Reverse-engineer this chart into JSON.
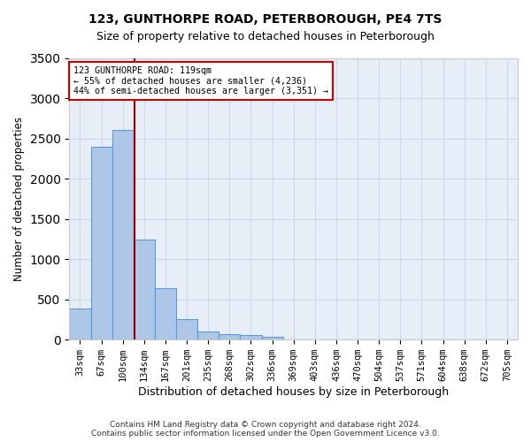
{
  "title1": "123, GUNTHORPE ROAD, PETERBOROUGH, PE4 7TS",
  "title2": "Size of property relative to detached houses in Peterborough",
  "xlabel": "Distribution of detached houses by size in Peterborough",
  "ylabel": "Number of detached properties",
  "bin_labels": [
    "33sqm",
    "67sqm",
    "100sqm",
    "134sqm",
    "167sqm",
    "201sqm",
    "235sqm",
    "268sqm",
    "302sqm",
    "336sqm",
    "369sqm",
    "403sqm",
    "436sqm",
    "470sqm",
    "504sqm",
    "537sqm",
    "571sqm",
    "604sqm",
    "638sqm",
    "672sqm",
    "705sqm"
  ],
  "bar_values": [
    390,
    2400,
    2600,
    1240,
    640,
    260,
    100,
    65,
    60,
    40,
    0,
    0,
    0,
    0,
    0,
    0,
    0,
    0,
    0,
    0,
    0
  ],
  "bar_color": "#aec6e8",
  "bar_edge_color": "#5b9bd5",
  "annotation_text_line1": "123 GUNTHORPE ROAD: 119sqm",
  "annotation_text_line2": "← 55% of detached houses are smaller (4,236)",
  "annotation_text_line3": "44% of semi-detached houses are larger (3,351) →",
  "annotation_box_color": "#ffffff",
  "annotation_box_edge": "#cc0000",
  "red_line_color": "#990000",
  "ylim": [
    0,
    3500
  ],
  "yticks": [
    0,
    500,
    1000,
    1500,
    2000,
    2500,
    3000,
    3500
  ],
  "grid_color": "#d0d8e8",
  "background_color": "#e8eef8",
  "footer1": "Contains HM Land Registry data © Crown copyright and database right 2024.",
  "footer2": "Contains public sector information licensed under the Open Government Licence v3.0."
}
